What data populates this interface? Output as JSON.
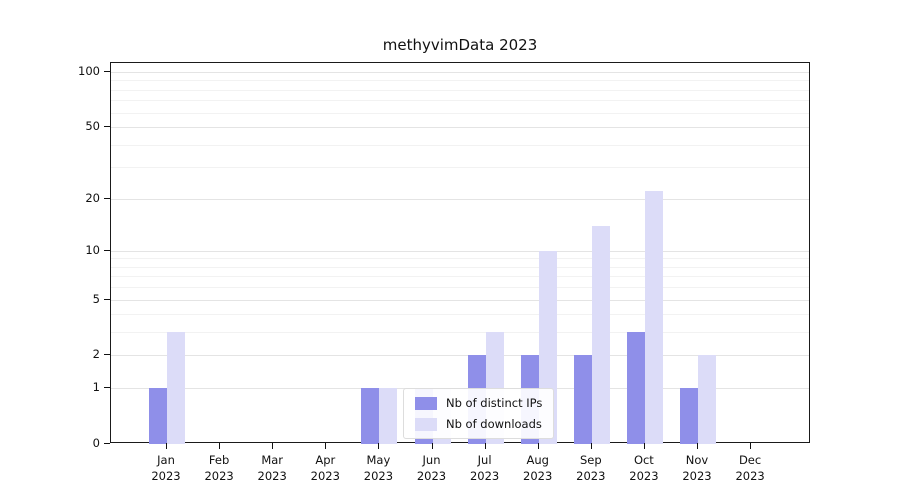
{
  "title": "methyvimData 2023",
  "colors": {
    "ips": "#8f8fe9",
    "downloads": "#dcdcf8",
    "axis": "#1a1a1a",
    "grid_major": "#e4e4e4",
    "grid_minor": "#f2f2f2",
    "background": "#ffffff"
  },
  "legend": {
    "items": [
      {
        "label": "Nb of distinct IPs",
        "color_key": "ips"
      },
      {
        "label": "Nb of downloads",
        "color_key": "downloads"
      }
    ]
  },
  "y_axis": {
    "ticks": [
      0,
      1,
      2,
      5,
      10,
      20,
      50,
      100
    ],
    "minor_gridlines": [
      3,
      4,
      6,
      7,
      8,
      9,
      30,
      40,
      60,
      70,
      80,
      90
    ],
    "scale": "log10(1+v)"
  },
  "chart_data": {
    "type": "bar",
    "title": "methyvimData 2023",
    "categories": [
      "Jan 2023",
      "Feb 2023",
      "Mar 2023",
      "Apr 2023",
      "May 2023",
      "Jun 2023",
      "Jul 2023",
      "Aug 2023",
      "Sep 2023",
      "Oct 2023",
      "Nov 2023",
      "Dec 2023"
    ],
    "series": [
      {
        "name": "Nb of distinct IPs",
        "values": [
          1,
          0,
          0,
          0,
          1,
          1,
          2,
          2,
          2,
          3,
          1,
          0
        ]
      },
      {
        "name": "Nb of downloads",
        "values": [
          3,
          0,
          0,
          0,
          1,
          1,
          3,
          10,
          14,
          22,
          2,
          0
        ]
      }
    ],
    "xlabel": "",
    "ylabel": "",
    "ylim": [
      0,
      100
    ],
    "y_ticks": [
      0,
      1,
      2,
      5,
      10,
      20,
      50,
      100
    ],
    "y_scale": "log1p",
    "grid": true,
    "legend_position": "lower center"
  }
}
